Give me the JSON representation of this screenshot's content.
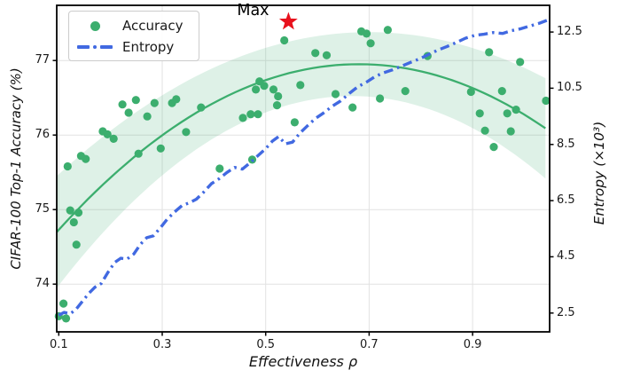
{
  "chart_data": {
    "type": "scatter",
    "title": "",
    "xlabel": "Effectiveness ρ",
    "ylabel_left": "CIFAR-100 Top-1 Accuracy (%)",
    "ylabel_right": "Entropy (×10³)",
    "x_ticks": [
      "0.1",
      "0.3",
      "0.5",
      "0.7",
      "0.9"
    ],
    "x_tick_values": [
      0.1,
      0.3,
      0.5,
      0.7,
      0.9
    ],
    "yleft_ticks": [
      "74",
      "75",
      "76",
      "77"
    ],
    "yleft_tick_values": [
      74,
      75,
      76,
      77
    ],
    "yright_ticks": [
      "2.5",
      "4.5",
      "6.5",
      "8.5",
      "10.5",
      "12.5"
    ],
    "yright_tick_values": [
      2.5,
      4.5,
      6.5,
      8.5,
      10.5,
      12.5
    ],
    "xlim": [
      0.096,
      1.049
    ],
    "ylim_left": [
      73.36,
      77.74
    ],
    "ylim_right": [
      1.83,
      13.45
    ],
    "grid": true,
    "grid_color": "#e2e2e2",
    "legend_position": "upper left",
    "colors": {
      "accuracy_green": "#3cae6e",
      "band_fill": "rgba(60,174,110,0.17)",
      "entropy_blue": "#4169e1",
      "star_red": "#e8111c",
      "spine_black": "#000000"
    },
    "series": [
      {
        "name": "Accuracy",
        "type": "scatter",
        "color": "#3cae6e",
        "points": [
          [
            0.1,
            73.57
          ],
          [
            0.109,
            73.74
          ],
          [
            0.114,
            73.54
          ],
          [
            0.117,
            75.58
          ],
          [
            0.122,
            74.99
          ],
          [
            0.129,
            74.83
          ],
          [
            0.134,
            74.53
          ],
          [
            0.138,
            74.96
          ],
          [
            0.143,
            75.72
          ],
          [
            0.152,
            75.68
          ],
          [
            0.185,
            76.05
          ],
          [
            0.194,
            76.01
          ],
          [
            0.206,
            75.95
          ],
          [
            0.223,
            76.41
          ],
          [
            0.235,
            76.3
          ],
          [
            0.249,
            76.47
          ],
          [
            0.254,
            75.75
          ],
          [
            0.271,
            76.25
          ],
          [
            0.285,
            76.43
          ],
          [
            0.297,
            75.82
          ],
          [
            0.319,
            76.43
          ],
          [
            0.327,
            76.48
          ],
          [
            0.346,
            76.04
          ],
          [
            0.375,
            76.37
          ],
          [
            0.411,
            75.55
          ],
          [
            0.456,
            76.23
          ],
          [
            0.471,
            76.28
          ],
          [
            0.474,
            75.67
          ],
          [
            0.481,
            76.61
          ],
          [
            0.485,
            76.28
          ],
          [
            0.488,
            76.72
          ],
          [
            0.497,
            76.66
          ],
          [
            0.515,
            76.61
          ],
          [
            0.522,
            76.4
          ],
          [
            0.524,
            76.52
          ],
          [
            0.536,
            77.27
          ],
          [
            0.556,
            76.17
          ],
          [
            0.567,
            76.67
          ],
          [
            0.596,
            77.1
          ],
          [
            0.618,
            77.07
          ],
          [
            0.635,
            76.55
          ],
          [
            0.668,
            76.37
          ],
          [
            0.685,
            77.39
          ],
          [
            0.695,
            77.36
          ],
          [
            0.703,
            77.23
          ],
          [
            0.721,
            76.49
          ],
          [
            0.736,
            77.41
          ],
          [
            0.77,
            76.59
          ],
          [
            0.813,
            77.06
          ],
          [
            0.897,
            76.58
          ],
          [
            0.914,
            76.29
          ],
          [
            0.924,
            76.06
          ],
          [
            0.932,
            77.11
          ],
          [
            0.941,
            75.84
          ],
          [
            0.957,
            76.59
          ],
          [
            0.967,
            76.29
          ],
          [
            0.974,
            76.05
          ],
          [
            0.984,
            76.34
          ],
          [
            0.992,
            76.98
          ],
          [
            1.042,
            76.46
          ]
        ]
      },
      {
        "name": "Accuracy trend",
        "type": "line",
        "color": "#3cae6e",
        "fit": "quadratic",
        "peak": [
          0.68,
          76.95
        ],
        "curvature": -6.6,
        "band_halfwidth_params": [
          0.42,
          1.3,
          0.6
        ]
      },
      {
        "name": "Entropy",
        "type": "line",
        "style": "dashdot",
        "color": "#4169e1",
        "points": [
          [
            0.1,
            2.42
          ],
          [
            0.11,
            2.52
          ],
          [
            0.122,
            2.48
          ],
          [
            0.132,
            2.6
          ],
          [
            0.145,
            2.9
          ],
          [
            0.158,
            3.2
          ],
          [
            0.17,
            3.42
          ],
          [
            0.182,
            3.55
          ],
          [
            0.195,
            3.95
          ],
          [
            0.208,
            4.3
          ],
          [
            0.22,
            4.45
          ],
          [
            0.232,
            4.42
          ],
          [
            0.245,
            4.6
          ],
          [
            0.258,
            4.95
          ],
          [
            0.27,
            5.18
          ],
          [
            0.283,
            5.25
          ],
          [
            0.297,
            5.55
          ],
          [
            0.31,
            5.85
          ],
          [
            0.324,
            6.1
          ],
          [
            0.338,
            6.32
          ],
          [
            0.352,
            6.42
          ],
          [
            0.366,
            6.55
          ],
          [
            0.38,
            6.8
          ],
          [
            0.395,
            7.1
          ],
          [
            0.41,
            7.28
          ],
          [
            0.425,
            7.5
          ],
          [
            0.44,
            7.68
          ],
          [
            0.455,
            7.62
          ],
          [
            0.47,
            7.85
          ],
          [
            0.485,
            8.1
          ],
          [
            0.5,
            8.35
          ],
          [
            0.513,
            8.62
          ],
          [
            0.525,
            8.78
          ],
          [
            0.538,
            8.52
          ],
          [
            0.552,
            8.58
          ],
          [
            0.566,
            8.9
          ],
          [
            0.58,
            9.15
          ],
          [
            0.596,
            9.42
          ],
          [
            0.612,
            9.62
          ],
          [
            0.628,
            9.85
          ],
          [
            0.645,
            10.05
          ],
          [
            0.662,
            10.32
          ],
          [
            0.678,
            10.55
          ],
          [
            0.695,
            10.72
          ],
          [
            0.712,
            10.92
          ],
          [
            0.728,
            11.05
          ],
          [
            0.745,
            11.15
          ],
          [
            0.762,
            11.28
          ],
          [
            0.78,
            11.42
          ],
          [
            0.798,
            11.55
          ],
          [
            0.815,
            11.7
          ],
          [
            0.832,
            11.85
          ],
          [
            0.85,
            11.98
          ],
          [
            0.868,
            12.12
          ],
          [
            0.886,
            12.28
          ],
          [
            0.904,
            12.38
          ],
          [
            0.922,
            12.42
          ],
          [
            0.94,
            12.48
          ],
          [
            0.958,
            12.45
          ],
          [
            0.976,
            12.55
          ],
          [
            0.994,
            12.62
          ],
          [
            1.012,
            12.72
          ],
          [
            1.03,
            12.82
          ],
          [
            1.049,
            12.95
          ]
        ]
      }
    ],
    "annotations": [
      {
        "text": "Max",
        "marker": "star",
        "color": "#e8111c",
        "x": 0.544,
        "y": 77.52
      }
    ]
  },
  "legend": {
    "items": [
      {
        "label": "Accuracy",
        "marker": "dot",
        "color": "#3cae6e"
      },
      {
        "label": "Entropy",
        "marker": "dashdot-line",
        "color": "#4169e1"
      }
    ]
  }
}
